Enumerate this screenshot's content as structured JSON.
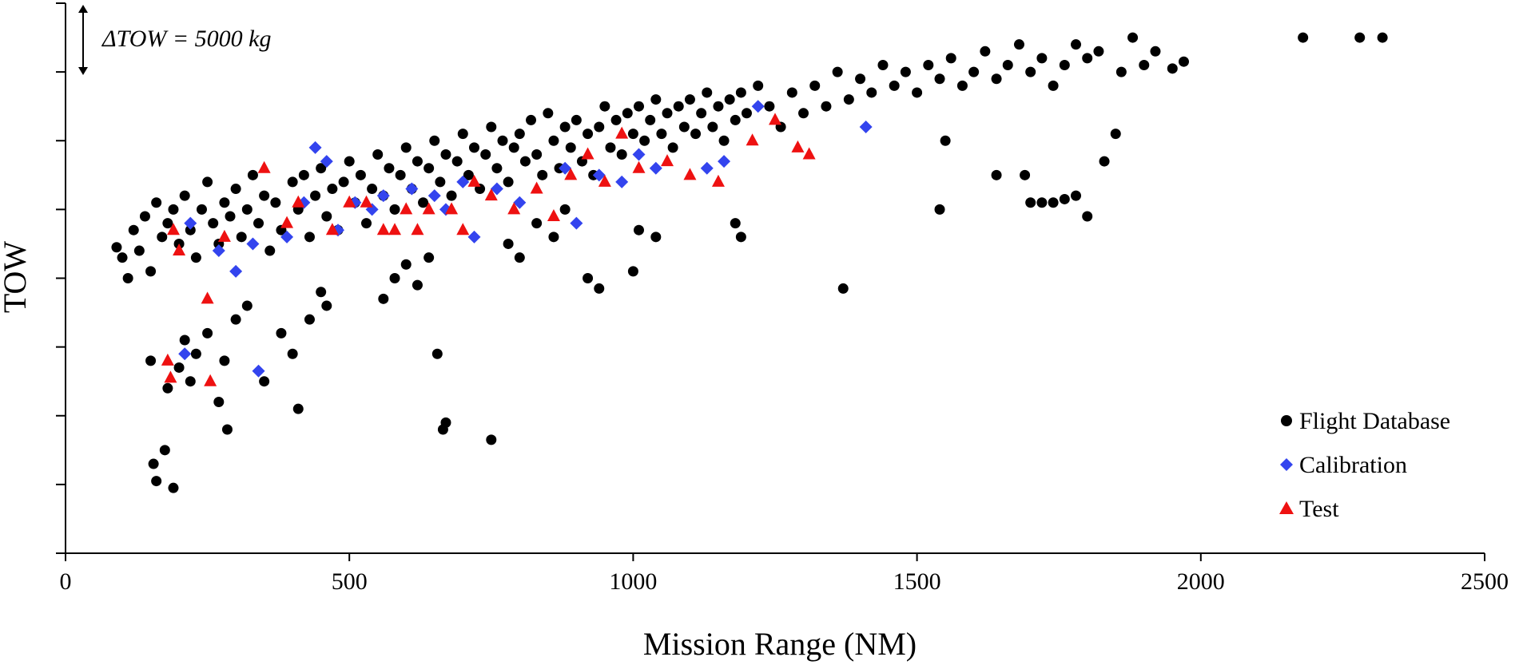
{
  "chart_data": {
    "type": "scatter",
    "xlabel": "Mission Range (NM)",
    "ylabel": "TOW",
    "xlim": [
      0,
      2500
    ],
    "ylim": [
      -8,
      0
    ],
    "x_ticks": [
      "0",
      "500",
      "1000",
      "1500",
      "2000",
      "2500"
    ],
    "y_tick_values": [
      -8,
      -7,
      -6,
      -5,
      -4,
      -3,
      -2,
      -1,
      0
    ],
    "y_tick_labels": "none",
    "grid": false,
    "legend_position": "bottom-right",
    "annotation": "ΔTOW = 5000 kg",
    "y_units_note": "tick spacing equals 5000 kg; no numeric tick labels shown",
    "series": [
      {
        "name": "Flight Database",
        "marker": "circle",
        "color": "#000000",
        "points": [
          [
            90,
            -3.55
          ],
          [
            100,
            -3.7
          ],
          [
            110,
            -4.0
          ],
          [
            120,
            -3.3
          ],
          [
            130,
            -3.6
          ],
          [
            140,
            -3.1
          ],
          [
            150,
            -3.9
          ],
          [
            160,
            -2.9
          ],
          [
            170,
            -3.4
          ],
          [
            180,
            -3.2
          ],
          [
            190,
            -3.0
          ],
          [
            200,
            -3.5
          ],
          [
            210,
            -2.8
          ],
          [
            220,
            -3.3
          ],
          [
            230,
            -3.7
          ],
          [
            240,
            -3.0
          ],
          [
            250,
            -2.6
          ],
          [
            260,
            -3.2
          ],
          [
            270,
            -3.5
          ],
          [
            280,
            -2.9
          ],
          [
            290,
            -3.1
          ],
          [
            300,
            -2.7
          ],
          [
            310,
            -3.4
          ],
          [
            320,
            -3.0
          ],
          [
            330,
            -2.5
          ],
          [
            340,
            -3.2
          ],
          [
            350,
            -2.8
          ],
          [
            360,
            -3.6
          ],
          [
            370,
            -2.9
          ],
          [
            380,
            -3.3
          ],
          [
            400,
            -2.6
          ],
          [
            410,
            -3.0
          ],
          [
            420,
            -2.5
          ],
          [
            430,
            -3.4
          ],
          [
            440,
            -2.8
          ],
          [
            450,
            -2.4
          ],
          [
            460,
            -3.1
          ],
          [
            470,
            -2.7
          ],
          [
            480,
            -3.3
          ],
          [
            490,
            -2.6
          ],
          [
            500,
            -2.3
          ],
          [
            510,
            -2.9
          ],
          [
            520,
            -2.5
          ],
          [
            530,
            -3.2
          ],
          [
            540,
            -2.7
          ],
          [
            550,
            -2.2
          ],
          [
            560,
            -2.8
          ],
          [
            570,
            -2.4
          ],
          [
            580,
            -3.0
          ],
          [
            590,
            -2.5
          ],
          [
            600,
            -2.1
          ],
          [
            610,
            -2.7
          ],
          [
            620,
            -2.3
          ],
          [
            630,
            -2.9
          ],
          [
            640,
            -2.4
          ],
          [
            650,
            -2.0
          ],
          [
            660,
            -2.6
          ],
          [
            670,
            -2.2
          ],
          [
            680,
            -2.8
          ],
          [
            690,
            -2.3
          ],
          [
            700,
            -1.9
          ],
          [
            710,
            -2.5
          ],
          [
            720,
            -2.1
          ],
          [
            730,
            -2.7
          ],
          [
            740,
            -2.2
          ],
          [
            750,
            -1.8
          ],
          [
            760,
            -2.4
          ],
          [
            770,
            -2.0
          ],
          [
            780,
            -2.6
          ],
          [
            790,
            -2.1
          ],
          [
            800,
            -1.9
          ],
          [
            810,
            -2.3
          ],
          [
            820,
            -1.7
          ],
          [
            830,
            -2.2
          ],
          [
            840,
            -2.5
          ],
          [
            850,
            -1.6
          ],
          [
            860,
            -2.0
          ],
          [
            870,
            -2.4
          ],
          [
            880,
            -1.8
          ],
          [
            890,
            -2.1
          ],
          [
            900,
            -1.7
          ],
          [
            910,
            -2.3
          ],
          [
            920,
            -1.9
          ],
          [
            930,
            -2.5
          ],
          [
            940,
            -1.8
          ],
          [
            950,
            -1.5
          ],
          [
            960,
            -2.1
          ],
          [
            970,
            -1.7
          ],
          [
            980,
            -2.2
          ],
          [
            990,
            -1.6
          ],
          [
            1000,
            -1.9
          ],
          [
            1010,
            -1.5
          ],
          [
            1020,
            -2.0
          ],
          [
            1030,
            -1.7
          ],
          [
            1040,
            -1.4
          ],
          [
            1050,
            -1.9
          ],
          [
            1060,
            -1.6
          ],
          [
            1070,
            -2.1
          ],
          [
            1080,
            -1.5
          ],
          [
            1090,
            -1.8
          ],
          [
            1100,
            -1.4
          ],
          [
            1110,
            -1.9
          ],
          [
            1120,
            -1.6
          ],
          [
            1130,
            -1.3
          ],
          [
            1140,
            -1.8
          ],
          [
            1150,
            -1.5
          ],
          [
            1160,
            -2.0
          ],
          [
            1170,
            -1.4
          ],
          [
            1180,
            -1.7
          ],
          [
            1190,
            -1.3
          ],
          [
            1200,
            -1.6
          ],
          [
            1220,
            -1.2
          ],
          [
            1240,
            -1.5
          ],
          [
            1260,
            -1.8
          ],
          [
            1280,
            -1.3
          ],
          [
            1300,
            -1.6
          ],
          [
            1320,
            -1.2
          ],
          [
            1340,
            -1.5
          ],
          [
            1360,
            -1.0
          ],
          [
            1380,
            -1.4
          ],
          [
            1400,
            -1.1
          ],
          [
            1420,
            -1.3
          ],
          [
            1440,
            -0.9
          ],
          [
            1460,
            -1.2
          ],
          [
            1480,
            -1.0
          ],
          [
            1500,
            -1.3
          ],
          [
            1520,
            -0.9
          ],
          [
            1540,
            -1.1
          ],
          [
            1560,
            -0.8
          ],
          [
            1580,
            -1.2
          ],
          [
            1600,
            -1.0
          ],
          [
            1620,
            -0.7
          ],
          [
            1640,
            -1.1
          ],
          [
            1660,
            -0.9
          ],
          [
            1680,
            -0.6
          ],
          [
            1700,
            -1.0
          ],
          [
            1720,
            -0.8
          ],
          [
            1740,
            -1.2
          ],
          [
            1760,
            -0.9
          ],
          [
            1780,
            -0.6
          ],
          [
            1800,
            -0.8
          ],
          [
            1820,
            -0.7
          ],
          [
            1860,
            -1.0
          ],
          [
            1880,
            -0.5
          ],
          [
            1900,
            -0.9
          ],
          [
            1920,
            -0.7
          ],
          [
            1950,
            -0.95
          ],
          [
            1970,
            -0.85
          ],
          [
            2180,
            -0.5
          ],
          [
            2280,
            -0.5
          ],
          [
            2320,
            -0.5
          ],
          [
            150,
            -5.2
          ],
          [
            155,
            -6.7
          ],
          [
            160,
            -6.95
          ],
          [
            175,
            -6.5
          ],
          [
            180,
            -5.6
          ],
          [
            190,
            -7.05
          ],
          [
            200,
            -5.3
          ],
          [
            210,
            -4.9
          ],
          [
            220,
            -5.5
          ],
          [
            230,
            -5.1
          ],
          [
            250,
            -4.8
          ],
          [
            270,
            -5.8
          ],
          [
            280,
            -5.2
          ],
          [
            285,
            -6.2
          ],
          [
            300,
            -4.6
          ],
          [
            320,
            -4.4
          ],
          [
            350,
            -5.5
          ],
          [
            380,
            -4.8
          ],
          [
            400,
            -5.1
          ],
          [
            410,
            -5.9
          ],
          [
            430,
            -4.6
          ],
          [
            450,
            -4.2
          ],
          [
            460,
            -4.4
          ],
          [
            655,
            -5.1
          ],
          [
            665,
            -6.2
          ],
          [
            670,
            -6.1
          ],
          [
            750,
            -6.35
          ],
          [
            1370,
            -4.15
          ],
          [
            1540,
            -3.0
          ],
          [
            1550,
            -2.0
          ],
          [
            1640,
            -2.5
          ],
          [
            1690,
            -2.5
          ],
          [
            1700,
            -2.9
          ],
          [
            1720,
            -2.9
          ],
          [
            1740,
            -2.9
          ],
          [
            1760,
            -2.85
          ],
          [
            1780,
            -2.8
          ],
          [
            1800,
            -3.1
          ],
          [
            1830,
            -2.3
          ],
          [
            1850,
            -1.9
          ],
          [
            1180,
            -3.2
          ],
          [
            1190,
            -3.4
          ],
          [
            1000,
            -3.9
          ],
          [
            1040,
            -3.4
          ],
          [
            920,
            -4.0
          ],
          [
            940,
            -4.15
          ],
          [
            1010,
            -3.3
          ],
          [
            780,
            -3.5
          ],
          [
            800,
            -3.7
          ],
          [
            830,
            -3.2
          ],
          [
            860,
            -3.4
          ],
          [
            880,
            -3.0
          ],
          [
            600,
            -3.8
          ],
          [
            620,
            -4.1
          ],
          [
            640,
            -3.7
          ],
          [
            560,
            -4.3
          ],
          [
            580,
            -4.0
          ]
        ]
      },
      {
        "name": "Calibration",
        "marker": "diamond",
        "color": "#3344ee",
        "points": [
          [
            220,
            -3.2
          ],
          [
            270,
            -3.6
          ],
          [
            300,
            -3.9
          ],
          [
            330,
            -3.5
          ],
          [
            390,
            -3.4
          ],
          [
            420,
            -2.9
          ],
          [
            440,
            -2.1
          ],
          [
            460,
            -2.3
          ],
          [
            480,
            -3.3
          ],
          [
            510,
            -2.9
          ],
          [
            540,
            -3.0
          ],
          [
            560,
            -2.8
          ],
          [
            610,
            -2.7
          ],
          [
            650,
            -2.8
          ],
          [
            670,
            -3.0
          ],
          [
            700,
            -2.6
          ],
          [
            720,
            -3.4
          ],
          [
            760,
            -2.7
          ],
          [
            800,
            -2.9
          ],
          [
            880,
            -2.4
          ],
          [
            900,
            -3.2
          ],
          [
            940,
            -2.5
          ],
          [
            980,
            -2.6
          ],
          [
            1010,
            -2.2
          ],
          [
            1040,
            -2.4
          ],
          [
            1130,
            -2.4
          ],
          [
            1160,
            -2.3
          ],
          [
            1220,
            -1.5
          ],
          [
            1410,
            -1.8
          ],
          [
            210,
            -5.1
          ],
          [
            340,
            -5.35
          ]
        ]
      },
      {
        "name": "Test",
        "marker": "triangle",
        "color": "#ee1111",
        "points": [
          [
            190,
            -3.3
          ],
          [
            200,
            -3.6
          ],
          [
            250,
            -4.3
          ],
          [
            255,
            -5.5
          ],
          [
            280,
            -3.4
          ],
          [
            350,
            -2.4
          ],
          [
            390,
            -3.2
          ],
          [
            410,
            -2.9
          ],
          [
            470,
            -3.3
          ],
          [
            500,
            -2.9
          ],
          [
            530,
            -2.9
          ],
          [
            560,
            -3.3
          ],
          [
            580,
            -3.3
          ],
          [
            600,
            -3.0
          ],
          [
            620,
            -3.3
          ],
          [
            640,
            -3.0
          ],
          [
            680,
            -3.0
          ],
          [
            700,
            -3.3
          ],
          [
            720,
            -2.6
          ],
          [
            750,
            -2.8
          ],
          [
            790,
            -3.0
          ],
          [
            830,
            -2.7
          ],
          [
            860,
            -3.1
          ],
          [
            890,
            -2.5
          ],
          [
            920,
            -2.2
          ],
          [
            950,
            -2.6
          ],
          [
            980,
            -1.9
          ],
          [
            1010,
            -2.4
          ],
          [
            1060,
            -2.3
          ],
          [
            1100,
            -2.5
          ],
          [
            1150,
            -2.6
          ],
          [
            1210,
            -2.0
          ],
          [
            1250,
            -1.7
          ],
          [
            1290,
            -2.1
          ],
          [
            1310,
            -2.2
          ],
          [
            180,
            -5.2
          ],
          [
            185,
            -5.45
          ]
        ]
      }
    ]
  }
}
